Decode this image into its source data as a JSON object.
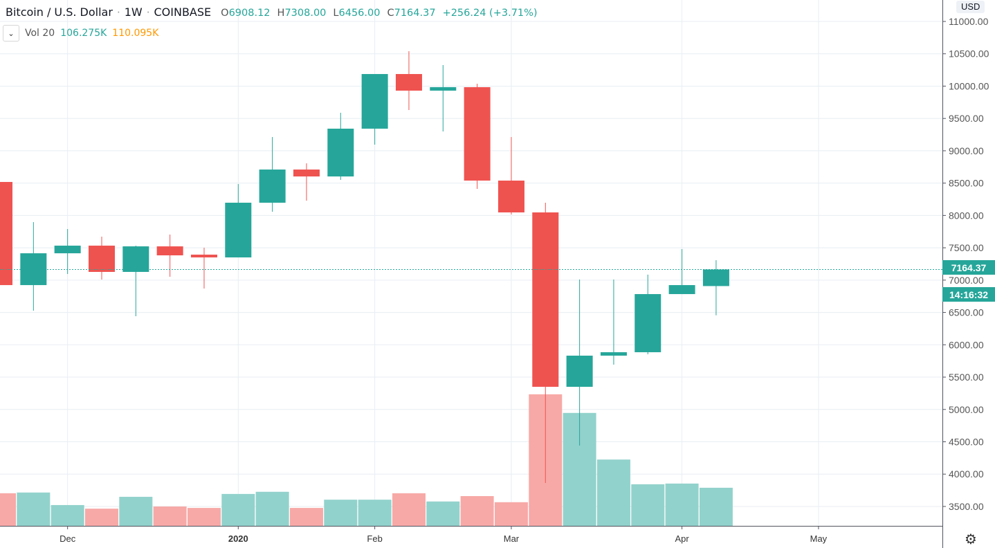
{
  "header": {
    "symbol": "Bitcoin / U.S. Dollar",
    "sep": "·",
    "interval": "1W",
    "exchange": "COINBASE",
    "ohlc": [
      {
        "k": "O",
        "v": "6908.12"
      },
      {
        "k": "H",
        "v": "7308.00"
      },
      {
        "k": "L",
        "v": "6456.00"
      },
      {
        "k": "C",
        "v": "7164.37"
      }
    ],
    "change": "+256.24 (+3.71%)"
  },
  "volume_legend": {
    "label": "Vol 20",
    "volume": "106.275K",
    "ma": "110.095K",
    "toggle": "⌄"
  },
  "currency": "USD",
  "last_price": "7164.37",
  "countdown": "14:16:32",
  "settings_icon": "⚙",
  "colors": {
    "up": "#26a69a",
    "down": "#ef5350",
    "up_vol": "#92d2cc",
    "down_vol": "#f7a9a7",
    "ma": "#ff9800"
  },
  "chart_data": {
    "type": "candlestick",
    "title": "Bitcoin / U.S. Dollar · 1W · COINBASE",
    "ylim": [
      3200,
      11300
    ],
    "y_ticks": [
      3500,
      4000,
      4500,
      5000,
      5500,
      6000,
      6500,
      7000,
      7500,
      8000,
      8500,
      9000,
      9500,
      10000,
      10500,
      11000
    ],
    "y_tick_labels": [
      "3500.00",
      "4000.00",
      "4500.00",
      "5000.00",
      "5500.00",
      "6000.00",
      "6500.00",
      "7000.00",
      "7500.00",
      "8000.00",
      "8500.00",
      "9000.00",
      "9500.00",
      "10000.00",
      "10500.00",
      "11000.00"
    ],
    "x_ticks": [
      {
        "label": "Dec",
        "index": 2,
        "bold": false
      },
      {
        "label": "2020",
        "index": 7,
        "bold": true
      },
      {
        "label": "Feb",
        "index": 11,
        "bold": false
      },
      {
        "label": "Mar",
        "index": 15,
        "bold": false
      },
      {
        "label": "Apr",
        "index": 20,
        "bold": false
      },
      {
        "label": "May",
        "index": 24,
        "bold": false
      }
    ],
    "candles": [
      {
        "o": 8518,
        "h": 8600,
        "l": 6900,
        "c": 6923,
        "v": 91
      },
      {
        "o": 6923,
        "h": 7897,
        "l": 6527,
        "c": 7415,
        "v": 93
      },
      {
        "o": 7415,
        "h": 7790,
        "l": 7095,
        "c": 7533,
        "v": 58
      },
      {
        "o": 7533,
        "h": 7672,
        "l": 7009,
        "c": 7127,
        "v": 48
      },
      {
        "o": 7127,
        "h": 7533,
        "l": 6442,
        "c": 7522,
        "v": 81
      },
      {
        "o": 7522,
        "h": 7705,
        "l": 7052,
        "c": 7383,
        "v": 54
      },
      {
        "o": 7394,
        "h": 7501,
        "l": 6870,
        "c": 7351,
        "v": 50
      },
      {
        "o": 7351,
        "h": 8486,
        "l": 7351,
        "c": 8197,
        "v": 89
      },
      {
        "o": 8197,
        "h": 9213,
        "l": 8057,
        "c": 8710,
        "v": 95
      },
      {
        "o": 8710,
        "h": 8806,
        "l": 8229,
        "c": 8603,
        "v": 50
      },
      {
        "o": 8603,
        "h": 9588,
        "l": 8550,
        "c": 9342,
        "v": 73
      },
      {
        "o": 9342,
        "h": 10187,
        "l": 9095,
        "c": 10187,
        "v": 73
      },
      {
        "o": 10187,
        "h": 10540,
        "l": 9630,
        "c": 9930,
        "v": 91
      },
      {
        "o": 9930,
        "h": 10326,
        "l": 9299,
        "c": 9984,
        "v": 68
      },
      {
        "o": 9984,
        "h": 10037,
        "l": 8411,
        "c": 8539,
        "v": 83
      },
      {
        "o": 8539,
        "h": 9213,
        "l": 8015,
        "c": 8047,
        "v": 66
      },
      {
        "o": 8047,
        "h": 8197,
        "l": 3863,
        "c": 5350,
        "v": 367
      },
      {
        "o": 5350,
        "h": 7009,
        "l": 4441,
        "c": 5832,
        "v": 315
      },
      {
        "o": 5832,
        "h": 7009,
        "l": 5693,
        "c": 5885,
        "v": 185
      },
      {
        "o": 5885,
        "h": 7085,
        "l": 5853,
        "c": 6784,
        "v": 116
      },
      {
        "o": 6784,
        "h": 7480,
        "l": 6784,
        "c": 6923,
        "v": 118
      },
      {
        "o": 6908.12,
        "h": 7308,
        "l": 6456,
        "c": 7164.37,
        "v": 106.275
      }
    ],
    "volume_unit": "K",
    "grid": true
  }
}
